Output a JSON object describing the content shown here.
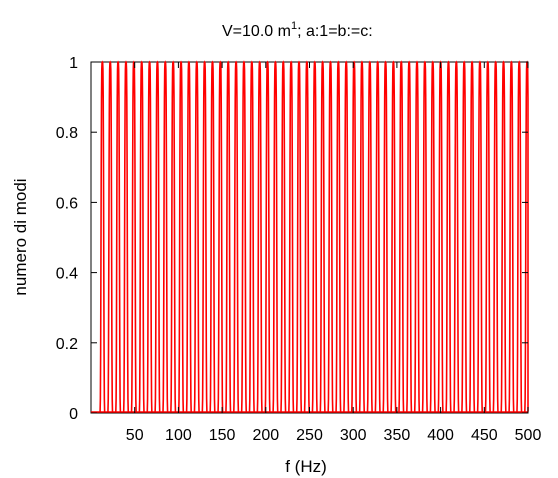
{
  "chart_data": {
    "type": "line",
    "title": "V=10.0 m",
    "title_sup": "1",
    "title_rest": "; a:1=b:=c:",
    "xlabel": "f (Hz)",
    "ylabel": "numero di modi",
    "xlim": [
      0,
      500
    ],
    "ylim": [
      0,
      1
    ],
    "x_ticks": [
      "50",
      "100",
      "150",
      "200",
      "250",
      "300",
      "350",
      "400",
      "450",
      "500"
    ],
    "y_ticks": [
      "0",
      "0.2",
      "0.4",
      "0.6",
      "0.8",
      "1"
    ],
    "series": [
      {
        "color": "#ff0000",
        "peak_x": [
          13,
          22,
          31,
          40,
          49,
          58,
          67,
          76,
          85,
          94,
          103,
          112,
          121,
          130,
          139,
          148,
          157,
          166,
          175,
          184,
          193,
          202,
          211,
          220,
          229,
          238,
          247,
          256,
          265,
          274,
          283,
          292,
          301,
          310,
          319,
          328,
          337,
          346,
          355,
          364,
          373,
          382,
          391,
          400,
          409,
          418,
          427,
          436,
          445,
          454,
          463,
          472,
          481,
          490,
          499
        ],
        "peak_y": 1,
        "baseline_y": 0
      }
    ],
    "grid": false,
    "legend": false
  }
}
